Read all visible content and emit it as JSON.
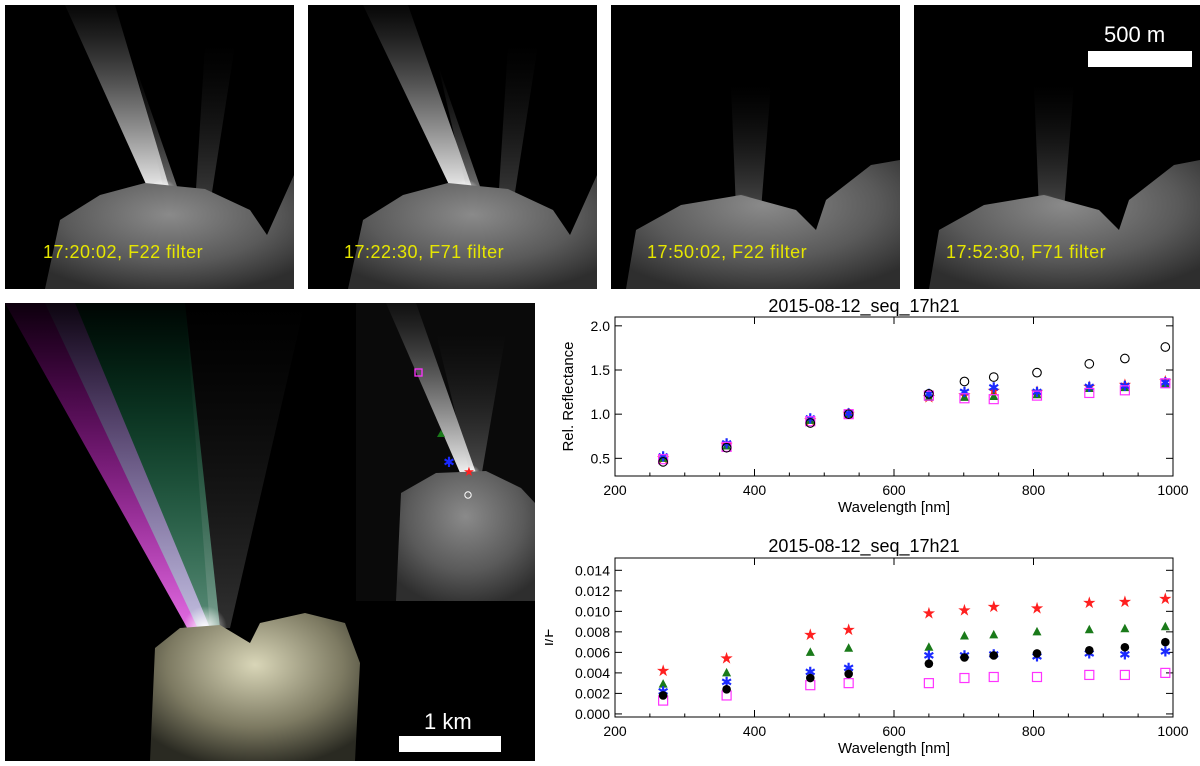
{
  "panels": [
    {
      "caption": "17:20:02, F22 filter"
    },
    {
      "caption": "17:22:30, F71 filter"
    },
    {
      "caption": "17:50:02, F22 filter"
    },
    {
      "caption": "17:52:30, F71 filter"
    }
  ],
  "scale_top": "500 m",
  "scale_bottom": "1 km",
  "colors": {
    "star": "#ff2020",
    "triangle": "#1a7a1a",
    "asterisk": "#1a2aff",
    "square": "#ff33ff",
    "circle": "#000000",
    "caption": "#e6e600"
  },
  "chart_data": [
    {
      "type": "scatter",
      "title": "2015-08-12_seq_17h21",
      "xlabel": "Wavelength [nm]",
      "ylabel": "Rel. Reflectance",
      "xlim": [
        200,
        1000
      ],
      "ylim": [
        0.3,
        2.1
      ],
      "xticks": [
        "200",
        "400",
        "600",
        "800",
        "1000"
      ],
      "yticks": [
        "0.5",
        "1.0",
        "1.5",
        "2.0"
      ],
      "ytick_values": [
        0.5,
        1.0,
        1.5,
        2.0
      ],
      "x": [
        269,
        360,
        480,
        535,
        650,
        701,
        743,
        805,
        880,
        931,
        989
      ],
      "series": [
        {
          "marker": "star",
          "values": [
            0.5,
            0.65,
            0.93,
            1.0,
            1.19,
            1.21,
            1.26,
            1.25,
            1.31,
            1.33,
            1.37
          ]
        },
        {
          "marker": "triangle",
          "values": [
            0.5,
            0.64,
            0.93,
            1.0,
            1.19,
            1.19,
            1.2,
            1.22,
            1.29,
            1.3,
            1.34
          ]
        },
        {
          "marker": "asterisk",
          "values": [
            0.52,
            0.67,
            0.95,
            1.01,
            1.23,
            1.25,
            1.3,
            1.25,
            1.31,
            1.32,
            1.36
          ]
        },
        {
          "marker": "square",
          "values": [
            0.49,
            0.63,
            0.92,
            1.0,
            1.21,
            1.18,
            1.17,
            1.21,
            1.24,
            1.27,
            1.35
          ]
        },
        {
          "marker": "circle",
          "values": [
            0.46,
            0.62,
            0.9,
            1.0,
            1.23,
            1.37,
            1.42,
            1.47,
            1.57,
            1.63,
            1.76
          ]
        }
      ]
    },
    {
      "type": "scatter",
      "title": "2015-08-12_seq_17h21",
      "xlabel": "Wavelength [nm]",
      "ylabel": "I/F",
      "xlim": [
        200,
        1000
      ],
      "ylim": [
        -0.0003,
        0.0152
      ],
      "xticks": [
        "200",
        "400",
        "600",
        "800",
        "1000"
      ],
      "yticks": [
        "0.000",
        "0.002",
        "0.004",
        "0.006",
        "0.008",
        "0.010",
        "0.012",
        "0.014"
      ],
      "ytick_values": [
        0,
        0.002,
        0.004,
        0.006,
        0.008,
        0.01,
        0.012,
        0.014
      ],
      "x": [
        269,
        360,
        480,
        535,
        650,
        701,
        743,
        805,
        880,
        931,
        989
      ],
      "series": [
        {
          "marker": "star",
          "values": [
            0.0042,
            0.0054,
            0.0077,
            0.0082,
            0.0098,
            0.0101,
            0.0104,
            0.0103,
            0.0108,
            0.0109,
            0.0112
          ]
        },
        {
          "marker": "triangle",
          "values": [
            0.0029,
            0.004,
            0.006,
            0.0064,
            0.0065,
            0.0076,
            0.0077,
            0.008,
            0.0082,
            0.0083,
            0.0085
          ]
        },
        {
          "marker": "asterisk",
          "values": [
            0.0022,
            0.0031,
            0.0041,
            0.0045,
            0.0057,
            0.0057,
            0.0058,
            0.0056,
            0.0059,
            0.0058,
            0.0061
          ]
        },
        {
          "marker": "square",
          "values": [
            0.0013,
            0.0018,
            0.0028,
            0.003,
            0.003,
            0.0035,
            0.0036,
            0.0036,
            0.0038,
            0.0038,
            0.004
          ]
        },
        {
          "marker": "circle",
          "values": [
            0.0018,
            0.0024,
            0.0035,
            0.0039,
            0.0049,
            0.0055,
            0.0057,
            0.0059,
            0.0062,
            0.0065,
            0.007
          ]
        }
      ]
    }
  ]
}
